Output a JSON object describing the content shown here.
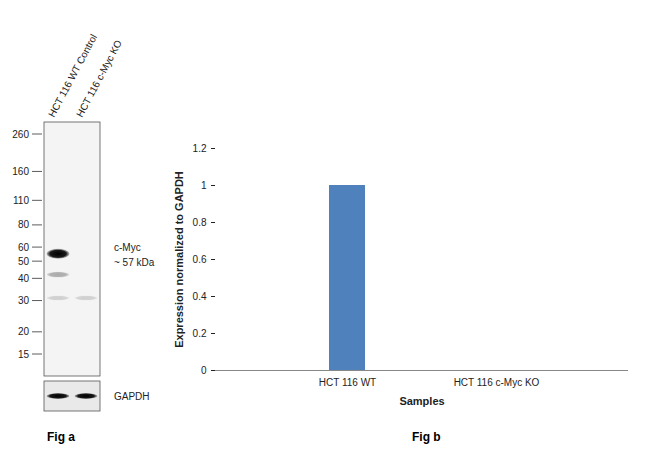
{
  "figure_a": {
    "caption": "Fig a",
    "lanes": [
      "HCT 116 WT Control",
      "HCT 116 c-Myc KO"
    ],
    "mw_markers": [
      260,
      160,
      110,
      80,
      60,
      50,
      40,
      30,
      20,
      15
    ],
    "bands": [
      {
        "lane": 0,
        "kda": 55,
        "intensity": 1
      },
      {
        "lane": 0,
        "kda": 42,
        "intensity": 0.3
      },
      {
        "lane": 0,
        "kda": 31,
        "intensity": 0.15
      },
      {
        "lane": 1,
        "kda": 31,
        "intensity": 0.15
      }
    ],
    "target_label": [
      "c-Myc",
      "~ 57 kDa"
    ],
    "loading_control": "GAPDH"
  },
  "chart_data": {
    "type": "bar",
    "caption": "Fig b",
    "categories": [
      "HCT 116 WT",
      "HCT 116 c-Myc KO"
    ],
    "values": [
      1,
      0
    ],
    "color": "#4f81bd",
    "x_label": "Samples",
    "y_label": "Expression normalized to GAPDH",
    "ylim": [
      0,
      1.2
    ],
    "yticks": [
      0,
      0.2,
      0.4,
      0.6,
      0.8,
      1,
      1.2
    ],
    "grid": false
  }
}
